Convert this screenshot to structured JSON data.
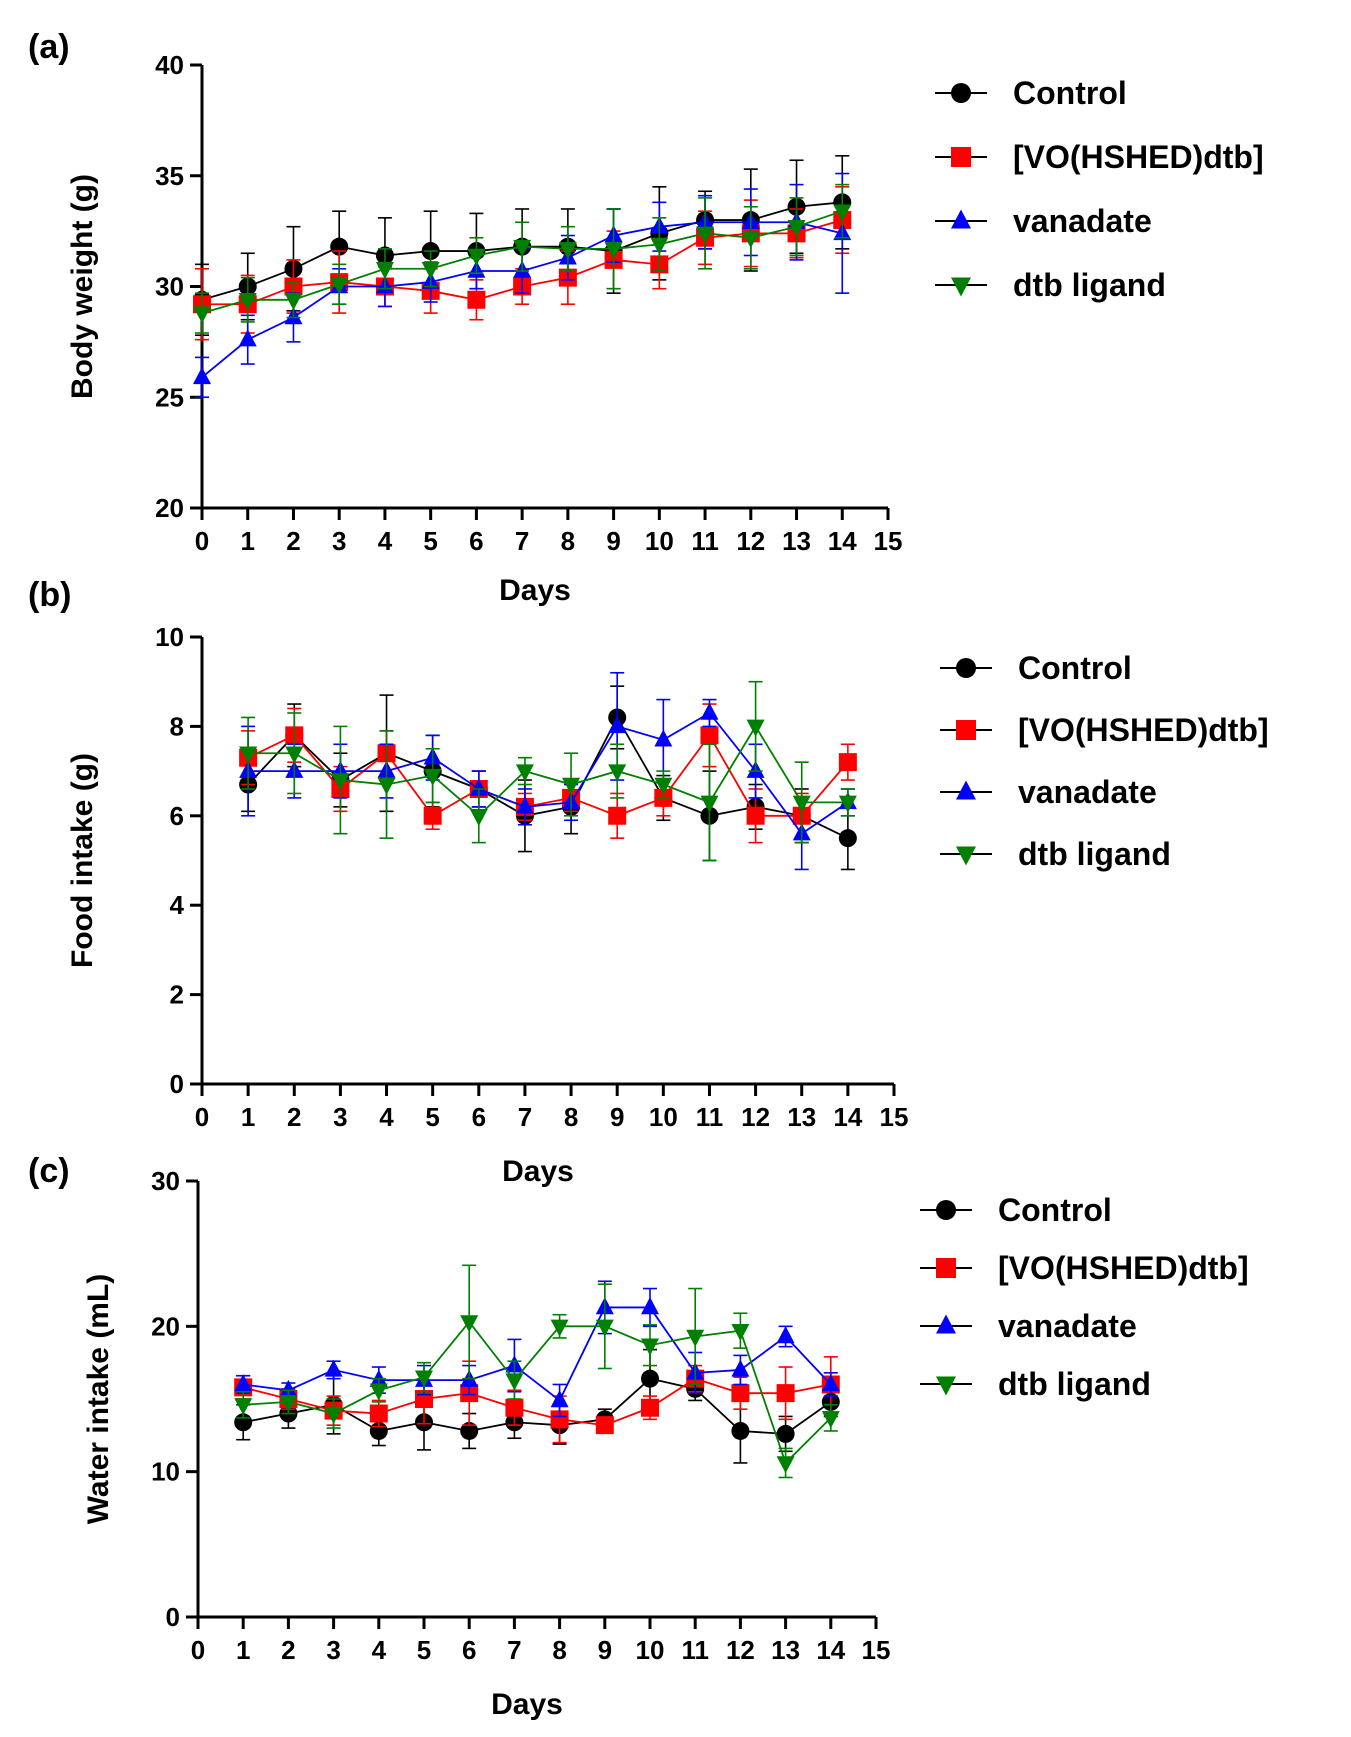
{
  "chart_data": [
    {
      "panel": "(a)",
      "type": "line",
      "title": "",
      "xlabel": "Days",
      "ylabel": "Body weight (g)",
      "xlim": [
        0,
        15
      ],
      "ylim": [
        20,
        40
      ],
      "xticks": [
        "0",
        "1",
        "2",
        "3",
        "4",
        "5",
        "6",
        "7",
        "8",
        "9",
        "10",
        "11",
        "12",
        "13",
        "14",
        "15"
      ],
      "yticks": [
        "20",
        "25",
        "30",
        "35",
        "40"
      ],
      "x": [
        0,
        1,
        2,
        3,
        4,
        5,
        6,
        7,
        8,
        9,
        10,
        11,
        12,
        13,
        14
      ],
      "series": [
        {
          "name": "Control",
          "color": "#000000",
          "marker": "circle",
          "values": [
            29.4,
            30.0,
            30.8,
            31.8,
            31.4,
            31.6,
            31.6,
            31.8,
            31.8,
            31.6,
            32.4,
            33.0,
            33.0,
            33.6,
            33.8
          ],
          "errors": [
            1.6,
            1.5,
            1.9,
            1.6,
            1.7,
            1.8,
            1.7,
            1.7,
            1.7,
            1.9,
            2.1,
            1.3,
            2.3,
            2.1,
            2.1
          ]
        },
        {
          "name": "[VO(HSHED)dtb]",
          "color": "#ff0000",
          "marker": "square",
          "values": [
            29.2,
            29.2,
            30.0,
            30.2,
            30.0,
            29.8,
            29.4,
            30.0,
            30.4,
            31.2,
            31.0,
            32.2,
            32.4,
            32.4,
            33.0
          ],
          "errors": [
            1.6,
            1.3,
            1.2,
            1.4,
            0.9,
            1.0,
            0.9,
            0.8,
            1.2,
            1.3,
            1.1,
            1.2,
            1.5,
            1.1,
            1.5
          ]
        },
        {
          "name": "vanadate",
          "color": "#0000ff",
          "marker": "triangle-up",
          "values": [
            25.9,
            27.6,
            28.6,
            30.0,
            30.0,
            30.2,
            30.7,
            30.7,
            31.3,
            32.3,
            32.7,
            32.9,
            32.9,
            32.9,
            32.4
          ],
          "errors": [
            0.9,
            1.1,
            1.1,
            0.8,
            0.9,
            0.9,
            0.8,
            1.0,
            1.0,
            1.2,
            1.1,
            1.2,
            1.5,
            1.7,
            2.7
          ]
        },
        {
          "name": "dtb ligand",
          "color": "#008000",
          "marker": "triangle-down",
          "values": [
            28.8,
            29.4,
            29.4,
            30.1,
            30.8,
            30.8,
            31.4,
            31.8,
            31.7,
            31.7,
            31.9,
            32.4,
            32.2,
            32.7,
            33.4
          ],
          "errors": [
            0.9,
            1.0,
            0.8,
            0.9,
            0.9,
            0.8,
            0.8,
            1.1,
            1.0,
            1.8,
            1.2,
            1.6,
            1.4,
            1.3,
            1.2
          ]
        }
      ]
    },
    {
      "panel": "(b)",
      "type": "line",
      "title": "",
      "xlabel": "Days",
      "ylabel": "Food intake (g)",
      "xlim": [
        0,
        15
      ],
      "ylim": [
        0,
        10
      ],
      "xticks": [
        "0",
        "1",
        "2",
        "3",
        "4",
        "5",
        "6",
        "7",
        "8",
        "9",
        "10",
        "11",
        "12",
        "13",
        "14",
        "15"
      ],
      "yticks": [
        "0",
        "2",
        "4",
        "6",
        "8",
        "10"
      ],
      "x": [
        1,
        2,
        3,
        4,
        5,
        6,
        7,
        8,
        9,
        10,
        11,
        12,
        13,
        14
      ],
      "series": [
        {
          "name": "Control",
          "color": "#000000",
          "marker": "circle",
          "values": [
            6.7,
            7.8,
            6.8,
            7.4,
            7.0,
            6.6,
            6.0,
            6.2,
            8.2,
            6.4,
            6.0,
            6.2,
            6.0,
            5.5
          ],
          "errors": [
            0.6,
            0.7,
            0.6,
            1.3,
            0.8,
            0.4,
            0.8,
            0.6,
            0.7,
            0.5,
            1.0,
            0.5,
            0.6,
            0.7
          ]
        },
        {
          "name": "[VO(HSHED)dtb]",
          "color": "#ff0000",
          "marker": "square",
          "values": [
            7.3,
            7.8,
            6.6,
            7.4,
            6.0,
            6.6,
            6.2,
            6.4,
            6.0,
            6.4,
            7.8,
            6.0,
            6.0,
            7.2
          ],
          "errors": [
            0.6,
            0.6,
            0.5,
            0.5,
            0.3,
            0.4,
            0.3,
            0.3,
            0.5,
            0.4,
            0.7,
            0.6,
            0.5,
            0.4
          ]
        },
        {
          "name": "vanadate",
          "color": "#0000ff",
          "marker": "triangle-up",
          "values": [
            7.0,
            7.0,
            7.0,
            7.0,
            7.3,
            6.6,
            6.2,
            6.3,
            8.0,
            7.7,
            8.3,
            7.0,
            5.6,
            6.3
          ],
          "errors": [
            1.0,
            0.6,
            0.6,
            0.6,
            0.5,
            0.4,
            0.4,
            0.4,
            1.2,
            0.9,
            0.3,
            0.6,
            0.8,
            0.3
          ]
        },
        {
          "name": "dtb ligand",
          "color": "#008000",
          "marker": "triangle-down",
          "values": [
            7.4,
            7.4,
            6.8,
            6.7,
            6.9,
            6.0,
            7.0,
            6.7,
            7.0,
            6.7,
            6.3,
            8.0,
            6.3,
            6.3
          ],
          "errors": [
            0.8,
            0.9,
            1.2,
            1.2,
            0.6,
            0.6,
            0.3,
            0.7,
            0.6,
            0.3,
            1.3,
            1.0,
            0.9,
            0.3
          ]
        }
      ]
    },
    {
      "panel": "(c)",
      "type": "line",
      "title": "",
      "xlabel": "Days",
      "ylabel": "Water intake (mL)",
      "xlim": [
        0,
        15
      ],
      "ylim": [
        0,
        30
      ],
      "xticks": [
        "0",
        "1",
        "2",
        "3",
        "4",
        "5",
        "6",
        "7",
        "8",
        "9",
        "10",
        "11",
        "12",
        "13",
        "14",
        "15"
      ],
      "yticks": [
        "0",
        "10",
        "20",
        "30"
      ],
      "x": [
        1,
        2,
        3,
        4,
        5,
        6,
        7,
        8,
        9,
        10,
        11,
        12,
        13,
        14
      ],
      "series": [
        {
          "name": "Control",
          "color": "#000000",
          "marker": "circle",
          "values": [
            13.4,
            14.0,
            14.6,
            12.8,
            13.4,
            12.8,
            13.4,
            13.2,
            13.6,
            16.4,
            15.7,
            12.8,
            12.6,
            14.8
          ],
          "errors": [
            1.2,
            1.0,
            2.0,
            1.0,
            1.9,
            1.2,
            1.1,
            1.3,
            0.7,
            2.0,
            0.8,
            2.2,
            1.2,
            1.0
          ]
        },
        {
          "name": "[VO(HSHED)dtb]",
          "color": "#ff0000",
          "marker": "square",
          "values": [
            15.8,
            15.0,
            14.2,
            14.0,
            15.0,
            15.4,
            14.4,
            13.6,
            13.2,
            14.4,
            16.4,
            15.4,
            15.4,
            16.0
          ],
          "errors": [
            0.8,
            0.7,
            1.0,
            0.9,
            1.7,
            2.2,
            1.2,
            1.6,
            0.5,
            0.8,
            0.9,
            1.1,
            1.8,
            1.9
          ]
        },
        {
          "name": "vanadate",
          "color": "#0000ff",
          "marker": "triangle-up",
          "values": [
            16.0,
            15.6,
            17.0,
            16.3,
            16.3,
            16.3,
            17.3,
            14.9,
            21.3,
            21.3,
            16.8,
            17.0,
            19.3,
            16.0
          ],
          "errors": [
            0.6,
            0.5,
            0.6,
            0.9,
            1.0,
            1.0,
            1.8,
            1.1,
            1.8,
            1.3,
            1.4,
            1.0,
            0.7,
            0.8
          ]
        },
        {
          "name": "dtb ligand",
          "color": "#008000",
          "marker": "triangle-down",
          "values": [
            14.6,
            14.8,
            14.0,
            15.6,
            16.5,
            20.3,
            16.3,
            20.0,
            20.0,
            18.7,
            19.3,
            19.7,
            10.6,
            13.7
          ],
          "errors": [
            0.9,
            0.8,
            1.0,
            0.8,
            1.0,
            3.9,
            1.3,
            0.8,
            2.9,
            1.4,
            3.3,
            1.2,
            1.0,
            0.9
          ]
        }
      ]
    }
  ]
}
